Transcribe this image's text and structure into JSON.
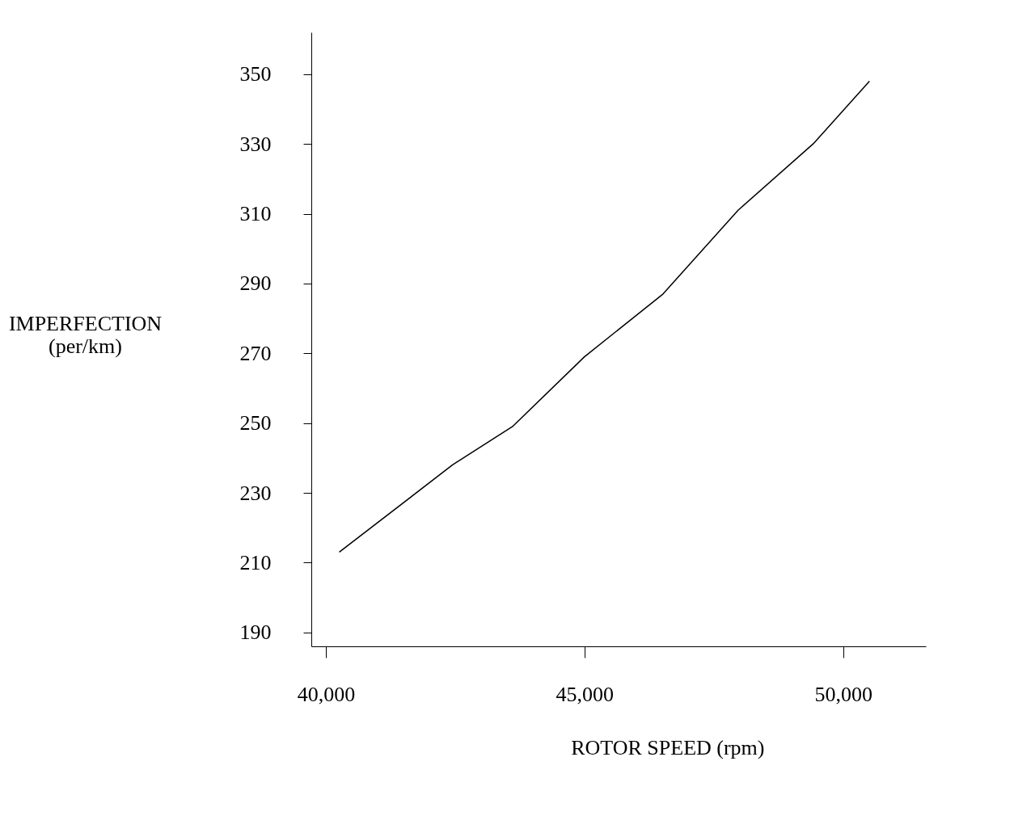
{
  "chart_data": {
    "type": "line",
    "xlabel": "ROTOR SPEED (rpm)",
    "ylabel": "IMPERFECTION\n(per/km)",
    "x": [
      40260,
      42450,
      43610,
      45000,
      46520,
      47970,
      49420,
      50510
    ],
    "series": [
      {
        "color": "#000000",
        "values": [
          213,
          238,
          249,
          269,
          287,
          311,
          330,
          348
        ]
      }
    ],
    "xlim": [
      39720,
      51600
    ],
    "ylim": [
      186,
      362
    ],
    "xticks": [
      {
        "value": 40000,
        "label": "40,000"
      },
      {
        "value": 45000,
        "label": "45,000"
      },
      {
        "value": 50000,
        "label": "50,000"
      }
    ],
    "yticks": [
      190,
      210,
      230,
      250,
      270,
      290,
      310,
      330,
      350
    ],
    "grid": false,
    "marker": "none",
    "line_style": "solid"
  }
}
